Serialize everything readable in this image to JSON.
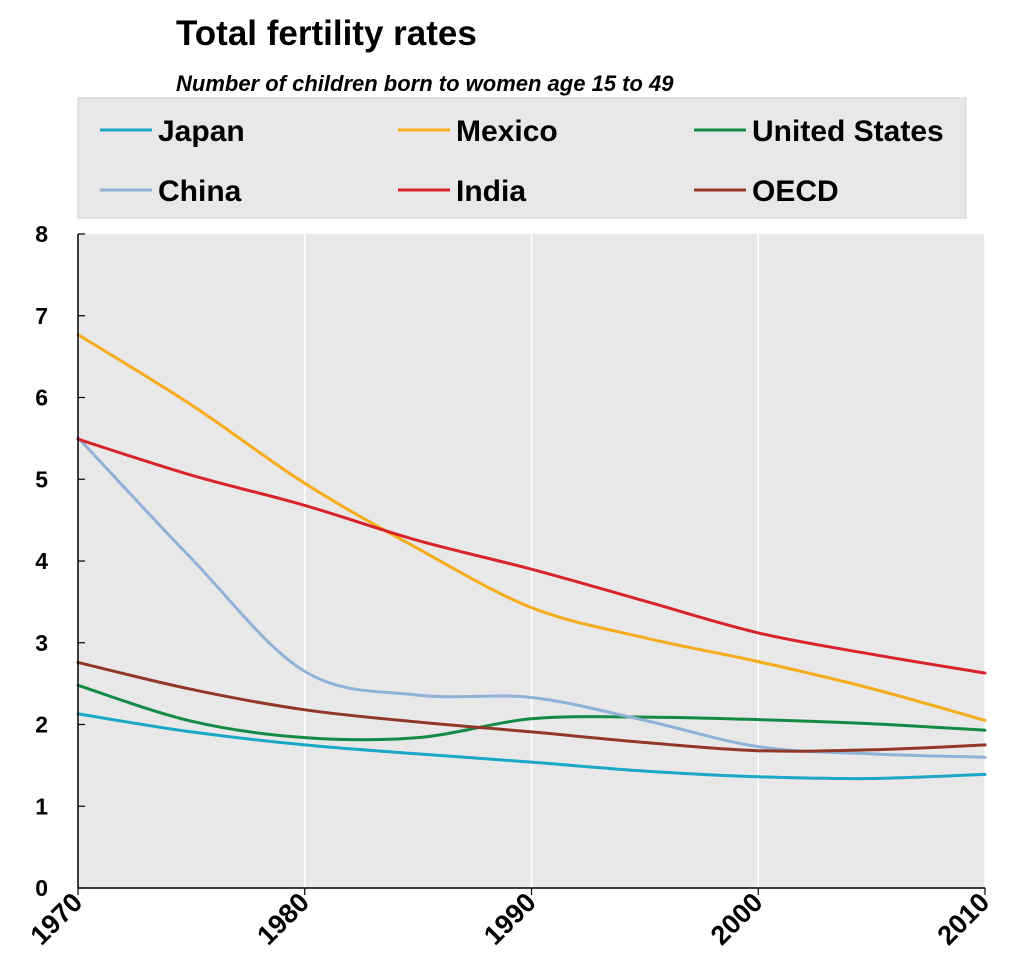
{
  "title": "Total fertility rates",
  "subtitle": "Number of children born to women age 15 to 49",
  "chart_data": {
    "type": "line",
    "title": "Total fertility rates",
    "subtitle": "Number of children born to women age 15 to 49",
    "xlabel": "",
    "ylabel": "",
    "x": [
      1970,
      1975,
      1980,
      1985,
      1990,
      1995,
      2000,
      2005,
      2010
    ],
    "xticks": [
      "1970",
      "1980",
      "1990",
      "2000",
      "2010"
    ],
    "xlim": [
      1970,
      2010
    ],
    "ylim": [
      0,
      8
    ],
    "yticks": [
      "0",
      "1",
      "2",
      "3",
      "4",
      "5",
      "6",
      "7",
      "8"
    ],
    "grid": "vertical",
    "legend_position": "top",
    "series": [
      {
        "name": "Japan",
        "color": "#1aa7c8",
        "values": [
          2.13,
          1.91,
          1.75,
          1.64,
          1.54,
          1.43,
          1.36,
          1.34,
          1.39
        ]
      },
      {
        "name": "Mexico",
        "color": "#f6ac1b",
        "values": [
          6.77,
          5.91,
          4.95,
          4.15,
          3.43,
          3.06,
          2.77,
          2.44,
          2.05
        ]
      },
      {
        "name": "United  States",
        "color": "#148a46",
        "values": [
          2.48,
          2.04,
          1.84,
          1.84,
          2.07,
          2.09,
          2.06,
          2.01,
          1.93
        ]
      },
      {
        "name": "China",
        "color": "#8fb2d6",
        "values": [
          5.51,
          4.03,
          2.65,
          2.36,
          2.33,
          2.05,
          1.73,
          1.64,
          1.6
        ]
      },
      {
        "name": "India",
        "color": "#d8232a",
        "values": [
          5.49,
          5.05,
          4.68,
          4.25,
          3.9,
          3.51,
          3.12,
          2.86,
          2.63
        ]
      },
      {
        "name": "OECD",
        "color": "#91372a",
        "values": [
          2.76,
          2.43,
          2.18,
          2.03,
          1.91,
          1.78,
          1.68,
          1.69,
          1.75
        ]
      }
    ]
  }
}
